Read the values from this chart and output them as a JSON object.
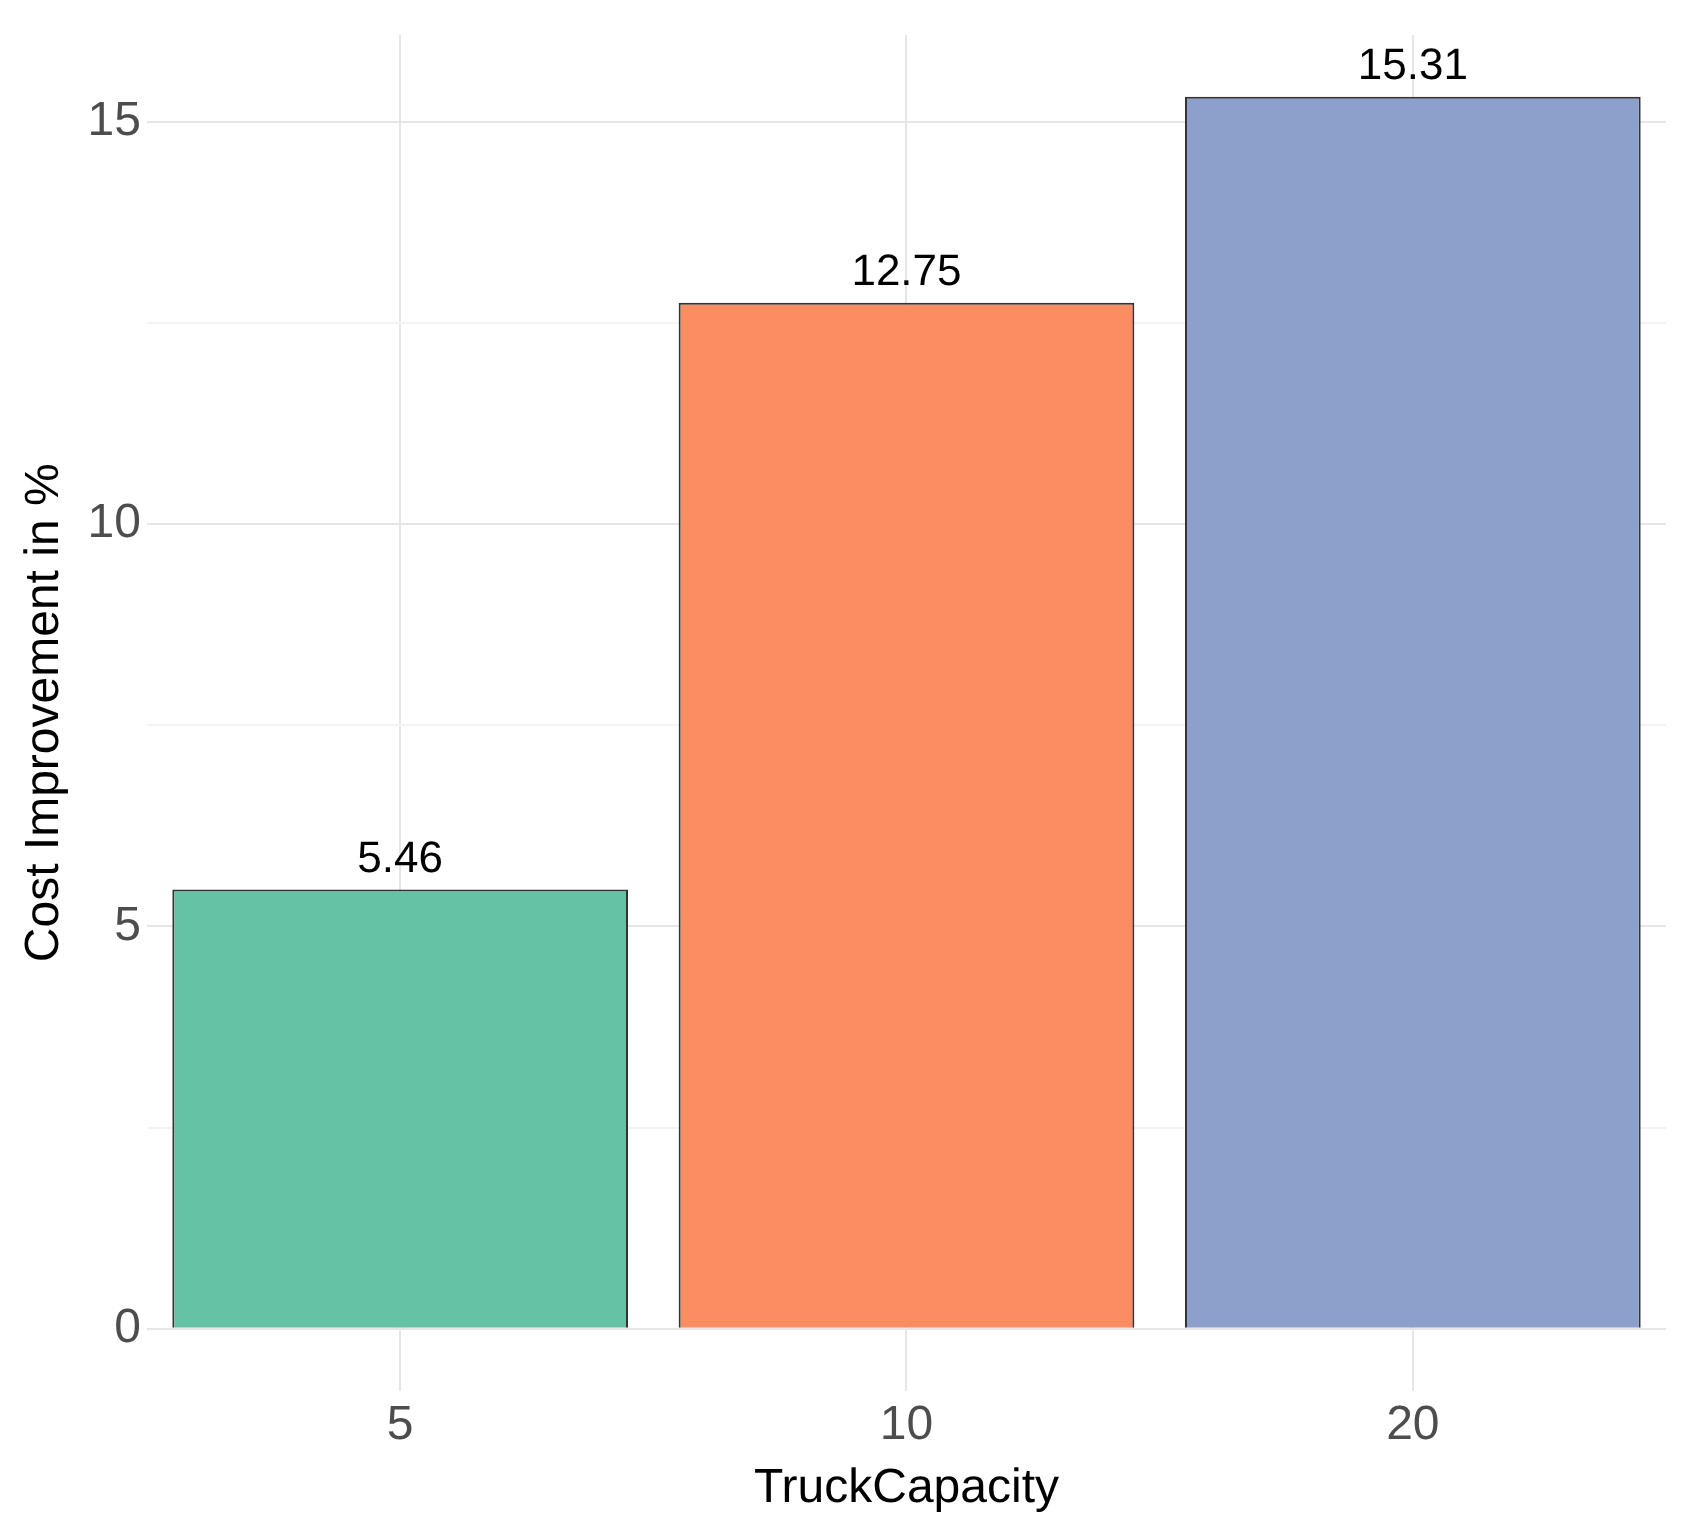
{
  "chart_data": {
    "type": "bar",
    "xlabel": "TruckCapacity",
    "ylabel": "Cost Improvement in %",
    "categories": [
      "5",
      "10",
      "20"
    ],
    "values": [
      5.46,
      12.75,
      15.31
    ],
    "colors": [
      "#66c2a5",
      "#fc8d62",
      "#8da0cb"
    ],
    "ylim": [
      -0.77,
      16.08
    ],
    "yticks": [
      0,
      {
        "value": 2.5,
        "label": null
      },
      5,
      {
        "value": 7.5,
        "label": null
      },
      10,
      {
        "value": 12.5,
        "label": null
      },
      15
    ],
    "grid": true,
    "legend": false,
    "data_labels": true
  }
}
